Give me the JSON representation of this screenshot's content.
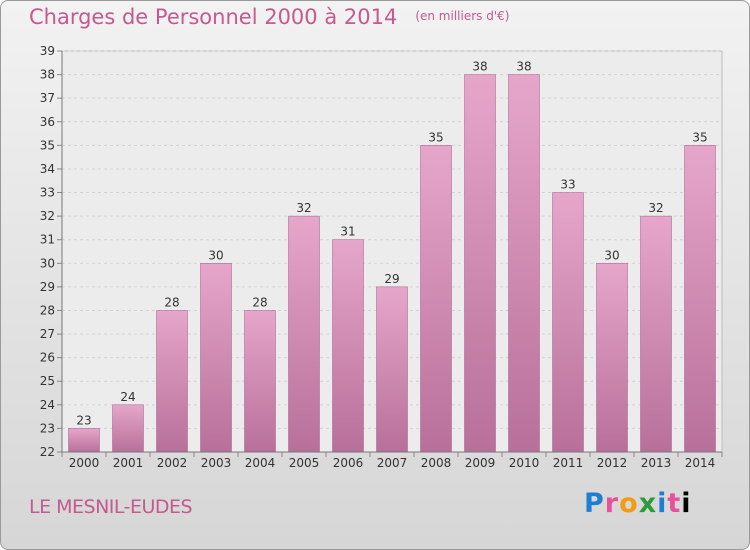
{
  "header": {
    "title": "Charges de Personnel 2000 à 2014",
    "unit": "(en milliers d'€)"
  },
  "footer": {
    "commune": "LE MESNIL-EUDES",
    "logo": [
      "P",
      "r",
      "o",
      "x",
      "i",
      "t",
      "i"
    ]
  },
  "colors": {
    "bar_top": "#e6a6ca",
    "bar_bottom": "#b8709a",
    "text_accent": "#c45a8d"
  },
  "chart_data": {
    "type": "bar",
    "title": "Charges de Personnel 2000 à 2014",
    "subtitle": "(en milliers d'€)",
    "categories": [
      "2000",
      "2001",
      "2002",
      "2003",
      "2004",
      "2005",
      "2006",
      "2007",
      "2008",
      "2009",
      "2010",
      "2011",
      "2012",
      "2013",
      "2014"
    ],
    "values": [
      23,
      24,
      28,
      30,
      28,
      32,
      31,
      29,
      35,
      38,
      38,
      33,
      30,
      32,
      35
    ],
    "ylim": [
      22,
      39
    ],
    "yticks": [
      22,
      23,
      24,
      25,
      26,
      27,
      28,
      29,
      30,
      31,
      32,
      33,
      34,
      35,
      36,
      37,
      38,
      39
    ],
    "grid": true,
    "legend": "none"
  }
}
